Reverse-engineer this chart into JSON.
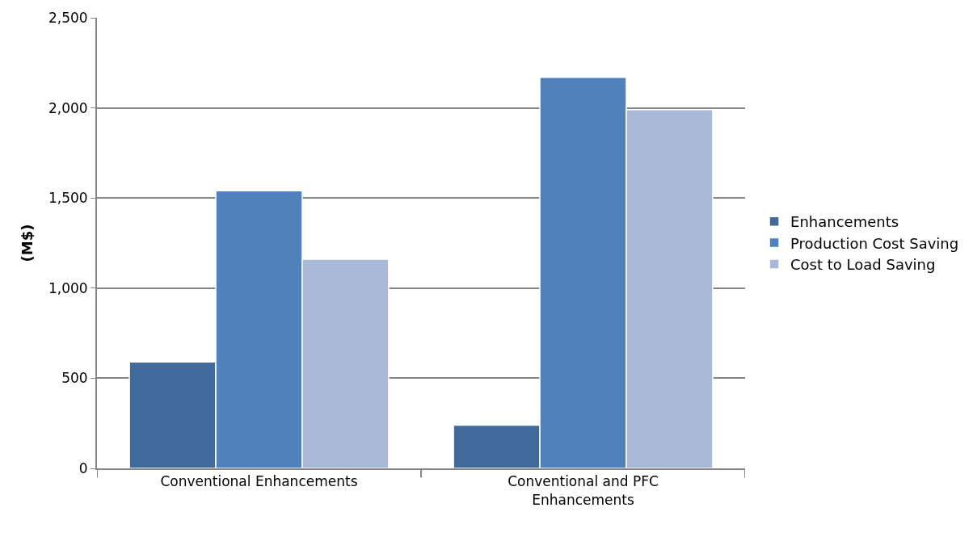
{
  "chart_data": {
    "type": "bar",
    "ylabel": "(M$)",
    "categories": [
      "Conventional Enhancements",
      "Conventional and PFC Enhancements"
    ],
    "series": [
      {
        "name": "Enhancements",
        "color": "#406a9c",
        "values": [
          590,
          240
        ]
      },
      {
        "name": "Production Cost Saving",
        "color": "#4f81bd",
        "values": [
          1540,
          2170
        ]
      },
      {
        "name": "Cost to Load Saving",
        "color": "#aab9d7",
        "values": [
          1160,
          1990
        ]
      }
    ],
    "ylim": [
      0,
      2500
    ],
    "yticks": [
      {
        "value": 0,
        "label": "0"
      },
      {
        "value": 500,
        "label": "500"
      },
      {
        "value": 1000,
        "label": "1,000"
      },
      {
        "value": 1500,
        "label": "1,500"
      },
      {
        "value": 2000,
        "label": "2,000"
      },
      {
        "value": 2500,
        "label": "2,500"
      }
    ],
    "grid": "y",
    "legend": "right"
  }
}
